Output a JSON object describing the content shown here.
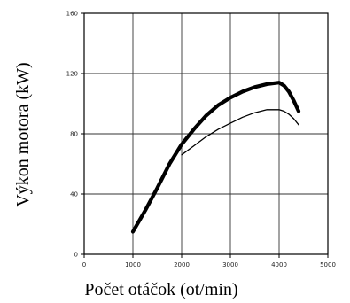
{
  "chart_data": {
    "type": "line",
    "title": "",
    "xlabel": "Počet otáčok (ot/min)",
    "ylabel": "Výkon motora (kW)",
    "xlim": [
      0,
      5000
    ],
    "ylim": [
      0,
      160
    ],
    "x_tick_values": [
      0,
      1000,
      2000,
      3000,
      4000,
      5000
    ],
    "x_tick_labels": [
      "0",
      "1000",
      "2000",
      "3000",
      "4000",
      "5000"
    ],
    "y_tick_values": [
      0,
      40,
      80,
      120,
      160
    ],
    "y_tick_labels": [
      "0",
      "40",
      "80",
      "120",
      "160"
    ],
    "grid": true,
    "legend": "none",
    "series": [
      {
        "color": "#000000",
        "style": "thick",
        "x": [
          1000,
          1250,
          1500,
          1750,
          2000,
          2250,
          2500,
          2750,
          3000,
          3250,
          3500,
          3750,
          4000,
          4100,
          4200,
          4300,
          4400
        ],
        "y": [
          15,
          29,
          44,
          60,
          73,
          83,
          92,
          99,
          104,
          108,
          111,
          113,
          114,
          112,
          108,
          102,
          95
        ]
      },
      {
        "color": "#000000",
        "style": "thin",
        "x": [
          2000,
          2250,
          2500,
          2750,
          3000,
          3250,
          3500,
          3750,
          4000,
          4100,
          4200,
          4300,
          4400
        ],
        "y": [
          66,
          72,
          78,
          83,
          87,
          91,
          94,
          96,
          96,
          95,
          93,
          90,
          86
        ]
      }
    ]
  }
}
